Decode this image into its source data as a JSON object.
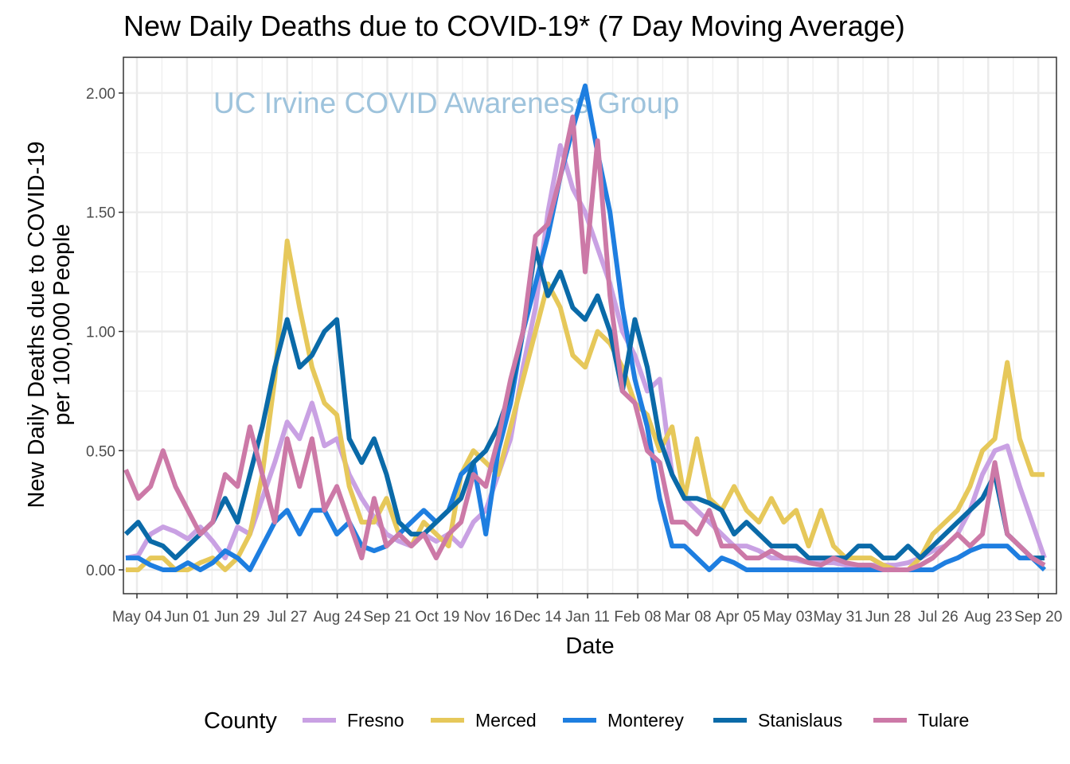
{
  "chart_data": {
    "type": "line",
    "title": "New Daily Deaths due to COVID-19*  (7 Day Moving Average)",
    "xlabel": "Date",
    "ylabel_lines": [
      "New Daily Deaths due to COVID-19",
      "per 100,000 People"
    ],
    "watermark": "UC Irvine COVID Awareness Group",
    "legend_title": "County",
    "legend_position": "bottom",
    "grid": true,
    "ylim": [
      -0.1,
      2.15
    ],
    "y_ticks": [
      "0.00",
      "0.50",
      "1.00",
      "1.50",
      "2.00"
    ],
    "x_tick_labels": [
      "May 04",
      "Jun 01",
      "Jun 29",
      "Jul 27",
      "Aug 24",
      "Sep 21",
      "Oct 19",
      "Nov 16",
      "Dec 14",
      "Jan 11",
      "Feb 08",
      "Mar 08",
      "Apr 05",
      "May 03",
      "May 31",
      "Jun 28",
      "Jul 26",
      "Aug 23",
      "Sep 20"
    ],
    "x": [
      "Apr 27",
      "May 04",
      "May 11",
      "May 18",
      "May 25",
      "Jun 01",
      "Jun 08",
      "Jun 15",
      "Jun 22",
      "Jun 29",
      "Jul 06",
      "Jul 13",
      "Jul 20",
      "Jul 27",
      "Aug 03",
      "Aug 10",
      "Aug 17",
      "Aug 24",
      "Aug 31",
      "Sep 07",
      "Sep 14",
      "Sep 21",
      "Sep 28",
      "Oct 05",
      "Oct 12",
      "Oct 19",
      "Oct 26",
      "Nov 02",
      "Nov 09",
      "Nov 16",
      "Nov 23",
      "Nov 30",
      "Dec 07",
      "Dec 14",
      "Dec 21",
      "Dec 28",
      "Jan 04",
      "Jan 11",
      "Jan 18",
      "Jan 25",
      "Feb 01",
      "Feb 08",
      "Feb 15",
      "Feb 22",
      "Mar 01",
      "Mar 08",
      "Mar 15",
      "Mar 22",
      "Mar 29",
      "Apr 05",
      "Apr 12",
      "Apr 19",
      "Apr 26",
      "May 03",
      "May 10",
      "May 17",
      "May 24",
      "May 31",
      "Jun 07",
      "Jun 14",
      "Jun 21",
      "Jun 28",
      "Jul 05",
      "Jul 12",
      "Jul 19",
      "Jul 26",
      "Aug 02",
      "Aug 09",
      "Aug 16",
      "Aug 23",
      "Aug 30",
      "Sep 06",
      "Sep 13",
      "Sep 20",
      "Sep 22"
    ],
    "series": [
      {
        "name": "Fresno",
        "color": "#c9a1e3",
        "values": [
          0.05,
          0.06,
          0.15,
          0.18,
          0.16,
          0.13,
          0.18,
          0.12,
          0.05,
          0.18,
          0.15,
          0.3,
          0.45,
          0.62,
          0.55,
          0.7,
          0.52,
          0.55,
          0.4,
          0.3,
          0.22,
          0.15,
          0.12,
          0.1,
          0.15,
          0.12,
          0.15,
          0.1,
          0.2,
          0.25,
          0.4,
          0.55,
          0.85,
          1.1,
          1.5,
          1.78,
          1.6,
          1.5,
          1.35,
          1.2,
          1.0,
          0.9,
          0.75,
          0.8,
          0.4,
          0.3,
          0.25,
          0.2,
          0.15,
          0.1,
          0.1,
          0.08,
          0.05,
          0.05,
          0.04,
          0.03,
          0.03,
          0.03,
          0.02,
          0.02,
          0.02,
          0.02,
          0.02,
          0.03,
          0.05,
          0.08,
          0.1,
          0.15,
          0.25,
          0.4,
          0.5,
          0.52,
          0.35,
          0.2,
          0.05
        ]
      },
      {
        "name": "Merced",
        "color": "#e6c85a",
        "values": [
          0.0,
          0.0,
          0.05,
          0.05,
          0.0,
          0.0,
          0.03,
          0.05,
          0.0,
          0.05,
          0.15,
          0.4,
          0.8,
          1.38,
          1.1,
          0.85,
          0.7,
          0.65,
          0.35,
          0.2,
          0.2,
          0.3,
          0.15,
          0.1,
          0.2,
          0.15,
          0.1,
          0.4,
          0.5,
          0.45,
          0.4,
          0.6,
          0.8,
          1.0,
          1.2,
          1.1,
          0.9,
          0.85,
          1.0,
          0.95,
          0.85,
          0.7,
          0.65,
          0.5,
          0.6,
          0.3,
          0.55,
          0.3,
          0.25,
          0.35,
          0.25,
          0.2,
          0.3,
          0.2,
          0.25,
          0.1,
          0.25,
          0.1,
          0.05,
          0.05,
          0.05,
          0.02,
          0.0,
          0.0,
          0.05,
          0.15,
          0.2,
          0.25,
          0.35,
          0.5,
          0.55,
          0.87,
          0.55,
          0.4,
          0.4
        ]
      },
      {
        "name": "Monterey",
        "color": "#1e7ee0",
        "values": [
          0.05,
          0.05,
          0.02,
          0.0,
          0.0,
          0.03,
          0.0,
          0.03,
          0.08,
          0.05,
          0.0,
          0.1,
          0.2,
          0.25,
          0.15,
          0.25,
          0.25,
          0.15,
          0.2,
          0.1,
          0.08,
          0.1,
          0.15,
          0.2,
          0.25,
          0.2,
          0.25,
          0.4,
          0.45,
          0.15,
          0.5,
          0.7,
          1.0,
          1.2,
          1.4,
          1.65,
          1.85,
          2.03,
          1.75,
          1.5,
          1.1,
          0.8,
          0.6,
          0.3,
          0.1,
          0.1,
          0.05,
          0.0,
          0.05,
          0.03,
          0.0,
          0.0,
          0.0,
          0.0,
          0.0,
          0.0,
          0.0,
          0.0,
          0.0,
          0.0,
          0.0,
          0.0,
          0.0,
          0.0,
          0.0,
          0.0,
          0.03,
          0.05,
          0.08,
          0.1,
          0.1,
          0.1,
          0.05,
          0.05,
          0.0
        ]
      },
      {
        "name": "Stanislaus",
        "color": "#0a6aa8",
        "values": [
          0.15,
          0.2,
          0.12,
          0.1,
          0.05,
          0.1,
          0.15,
          0.2,
          0.3,
          0.2,
          0.4,
          0.6,
          0.85,
          1.05,
          0.85,
          0.9,
          1.0,
          1.05,
          0.55,
          0.45,
          0.55,
          0.4,
          0.2,
          0.15,
          0.15,
          0.2,
          0.25,
          0.3,
          0.45,
          0.5,
          0.6,
          0.75,
          1.0,
          1.35,
          1.15,
          1.25,
          1.1,
          1.05,
          1.15,
          1.0,
          0.75,
          1.05,
          0.85,
          0.55,
          0.4,
          0.3,
          0.3,
          0.28,
          0.25,
          0.15,
          0.2,
          0.15,
          0.1,
          0.1,
          0.1,
          0.05,
          0.05,
          0.05,
          0.05,
          0.1,
          0.1,
          0.05,
          0.05,
          0.1,
          0.05,
          0.1,
          0.15,
          0.2,
          0.25,
          0.3,
          0.4,
          0.15,
          0.1,
          0.05,
          0.05
        ]
      },
      {
        "name": "Tulare",
        "color": "#cc79a7",
        "values": [
          0.42,
          0.3,
          0.35,
          0.5,
          0.35,
          0.25,
          0.15,
          0.2,
          0.4,
          0.35,
          0.6,
          0.4,
          0.2,
          0.55,
          0.35,
          0.55,
          0.25,
          0.35,
          0.2,
          0.05,
          0.3,
          0.1,
          0.15,
          0.1,
          0.15,
          0.05,
          0.15,
          0.2,
          0.4,
          0.35,
          0.55,
          0.8,
          1.0,
          1.4,
          1.45,
          1.65,
          1.9,
          1.25,
          1.8,
          1.15,
          0.75,
          0.7,
          0.5,
          0.45,
          0.2,
          0.2,
          0.15,
          0.25,
          0.1,
          0.1,
          0.05,
          0.05,
          0.08,
          0.05,
          0.05,
          0.03,
          0.02,
          0.05,
          0.03,
          0.02,
          0.02,
          0.0,
          0.0,
          0.0,
          0.02,
          0.05,
          0.1,
          0.15,
          0.1,
          0.15,
          0.45,
          0.15,
          0.1,
          0.05,
          0.02
        ]
      }
    ]
  }
}
